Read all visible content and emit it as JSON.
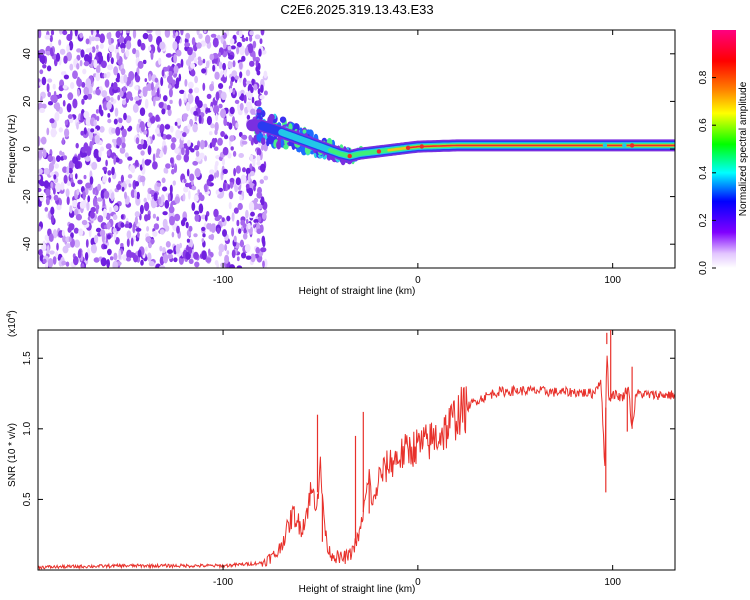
{
  "title": "C2E6.2025.319.13.43.E33",
  "colors": {
    "snr_line": "#e8312b",
    "spectrogram_noise": "#7a2fe0",
    "spectrogram_noise_light": "#d9bff5",
    "axis": "#000000"
  },
  "chart_data": [
    {
      "type": "heatmap",
      "name": "spectrogram",
      "xlabel": "Height of straight line (km)",
      "ylabel": "Frequency (Hz)",
      "xlim": [
        -195,
        132
      ],
      "ylim": [
        -50,
        50
      ],
      "xticks": [
        -100,
        0,
        100
      ],
      "xtick_labels": [
        "-100",
        "0",
        "100"
      ],
      "yticks": [
        -40,
        -20,
        0,
        20,
        40
      ],
      "ytick_labels": [
        "-40",
        "-20",
        "0",
        "20",
        "40"
      ],
      "noise_region_x_km": [
        -195,
        -81
      ],
      "ridge": {
        "x_km": [
          -81,
          -70,
          -60,
          -50,
          -40,
          -35,
          -30,
          -20,
          -10,
          0,
          20,
          50,
          80,
          100,
          132
        ],
        "freq_hz": [
          10,
          7,
          4,
          1,
          -2,
          -3,
          -2,
          -1,
          0,
          1,
          1.5,
          1.5,
          1.5,
          1.5,
          1.5
        ]
      },
      "colorbar": {
        "label": "Normalized spectral amplitude",
        "range": [
          0,
          1
        ],
        "ticks": [
          0.0,
          0.2,
          0.4,
          0.6,
          0.8
        ],
        "tick_labels": [
          "0.0",
          "0.2",
          "0.4",
          "0.6",
          "0.8"
        ],
        "colormap": [
          "#ffffff",
          "#8000ff",
          "#0000ff",
          "#00ffff",
          "#00ff00",
          "#ffff00",
          "#ff8000",
          "#ff0000",
          "#ff00ff"
        ]
      }
    },
    {
      "type": "line",
      "name": "snr",
      "xlabel": "Height of straight line (km)",
      "ylabel": "SNR (10 * v/v)",
      "scale_label": "(x10",
      "scale_exponent": "4",
      "xlim": [
        -195,
        132
      ],
      "ylim": [
        0,
        1.7
      ],
      "xticks": [
        -100,
        0,
        100
      ],
      "xtick_labels": [
        "-100",
        "0",
        "100"
      ],
      "yticks": [
        0.5,
        1.0,
        1.5
      ],
      "ytick_labels": [
        "0.5",
        "1.0",
        "1.5"
      ],
      "envelope": {
        "x": [
          -195,
          -150,
          -100,
          -80,
          -72,
          -68,
          -64,
          -60,
          -58,
          -55,
          -52,
          -50,
          -47,
          -45,
          -40,
          -35,
          -30,
          -25,
          -23,
          -20,
          -15,
          -10,
          -5,
          0,
          5,
          10,
          15,
          20,
          30,
          40,
          50,
          60,
          70,
          80,
          90,
          94,
          96,
          97,
          98,
          100,
          105,
          108,
          110,
          112,
          120,
          132
        ],
        "y": [
          0.02,
          0.03,
          0.03,
          0.05,
          0.12,
          0.25,
          0.4,
          0.3,
          0.35,
          0.55,
          0.5,
          0.7,
          0.2,
          0.12,
          0.08,
          0.1,
          0.25,
          0.65,
          0.45,
          0.65,
          0.75,
          0.8,
          0.85,
          0.88,
          0.9,
          0.95,
          1.0,
          1.1,
          1.2,
          1.26,
          1.27,
          1.27,
          1.26,
          1.26,
          1.25,
          1.35,
          0.7,
          1.6,
          1.2,
          1.25,
          1.22,
          1.3,
          1.0,
          1.25,
          1.24,
          1.24
        ]
      },
      "spikes": [
        {
          "x": -51.5,
          "y": 1.1
        },
        {
          "x": -49,
          "y": 0.2
        },
        {
          "x": -32,
          "y": 0.95
        },
        {
          "x": -28,
          "y": 1.12
        },
        {
          "x": -25,
          "y": 0.4
        },
        {
          "x": 96.5,
          "y": 0.55
        },
        {
          "x": 97,
          "y": 1.68
        },
        {
          "x": 99,
          "y": 1.72
        },
        {
          "x": 107.5,
          "y": 0.98
        },
        {
          "x": 110,
          "y": 1.44
        }
      ]
    }
  ]
}
